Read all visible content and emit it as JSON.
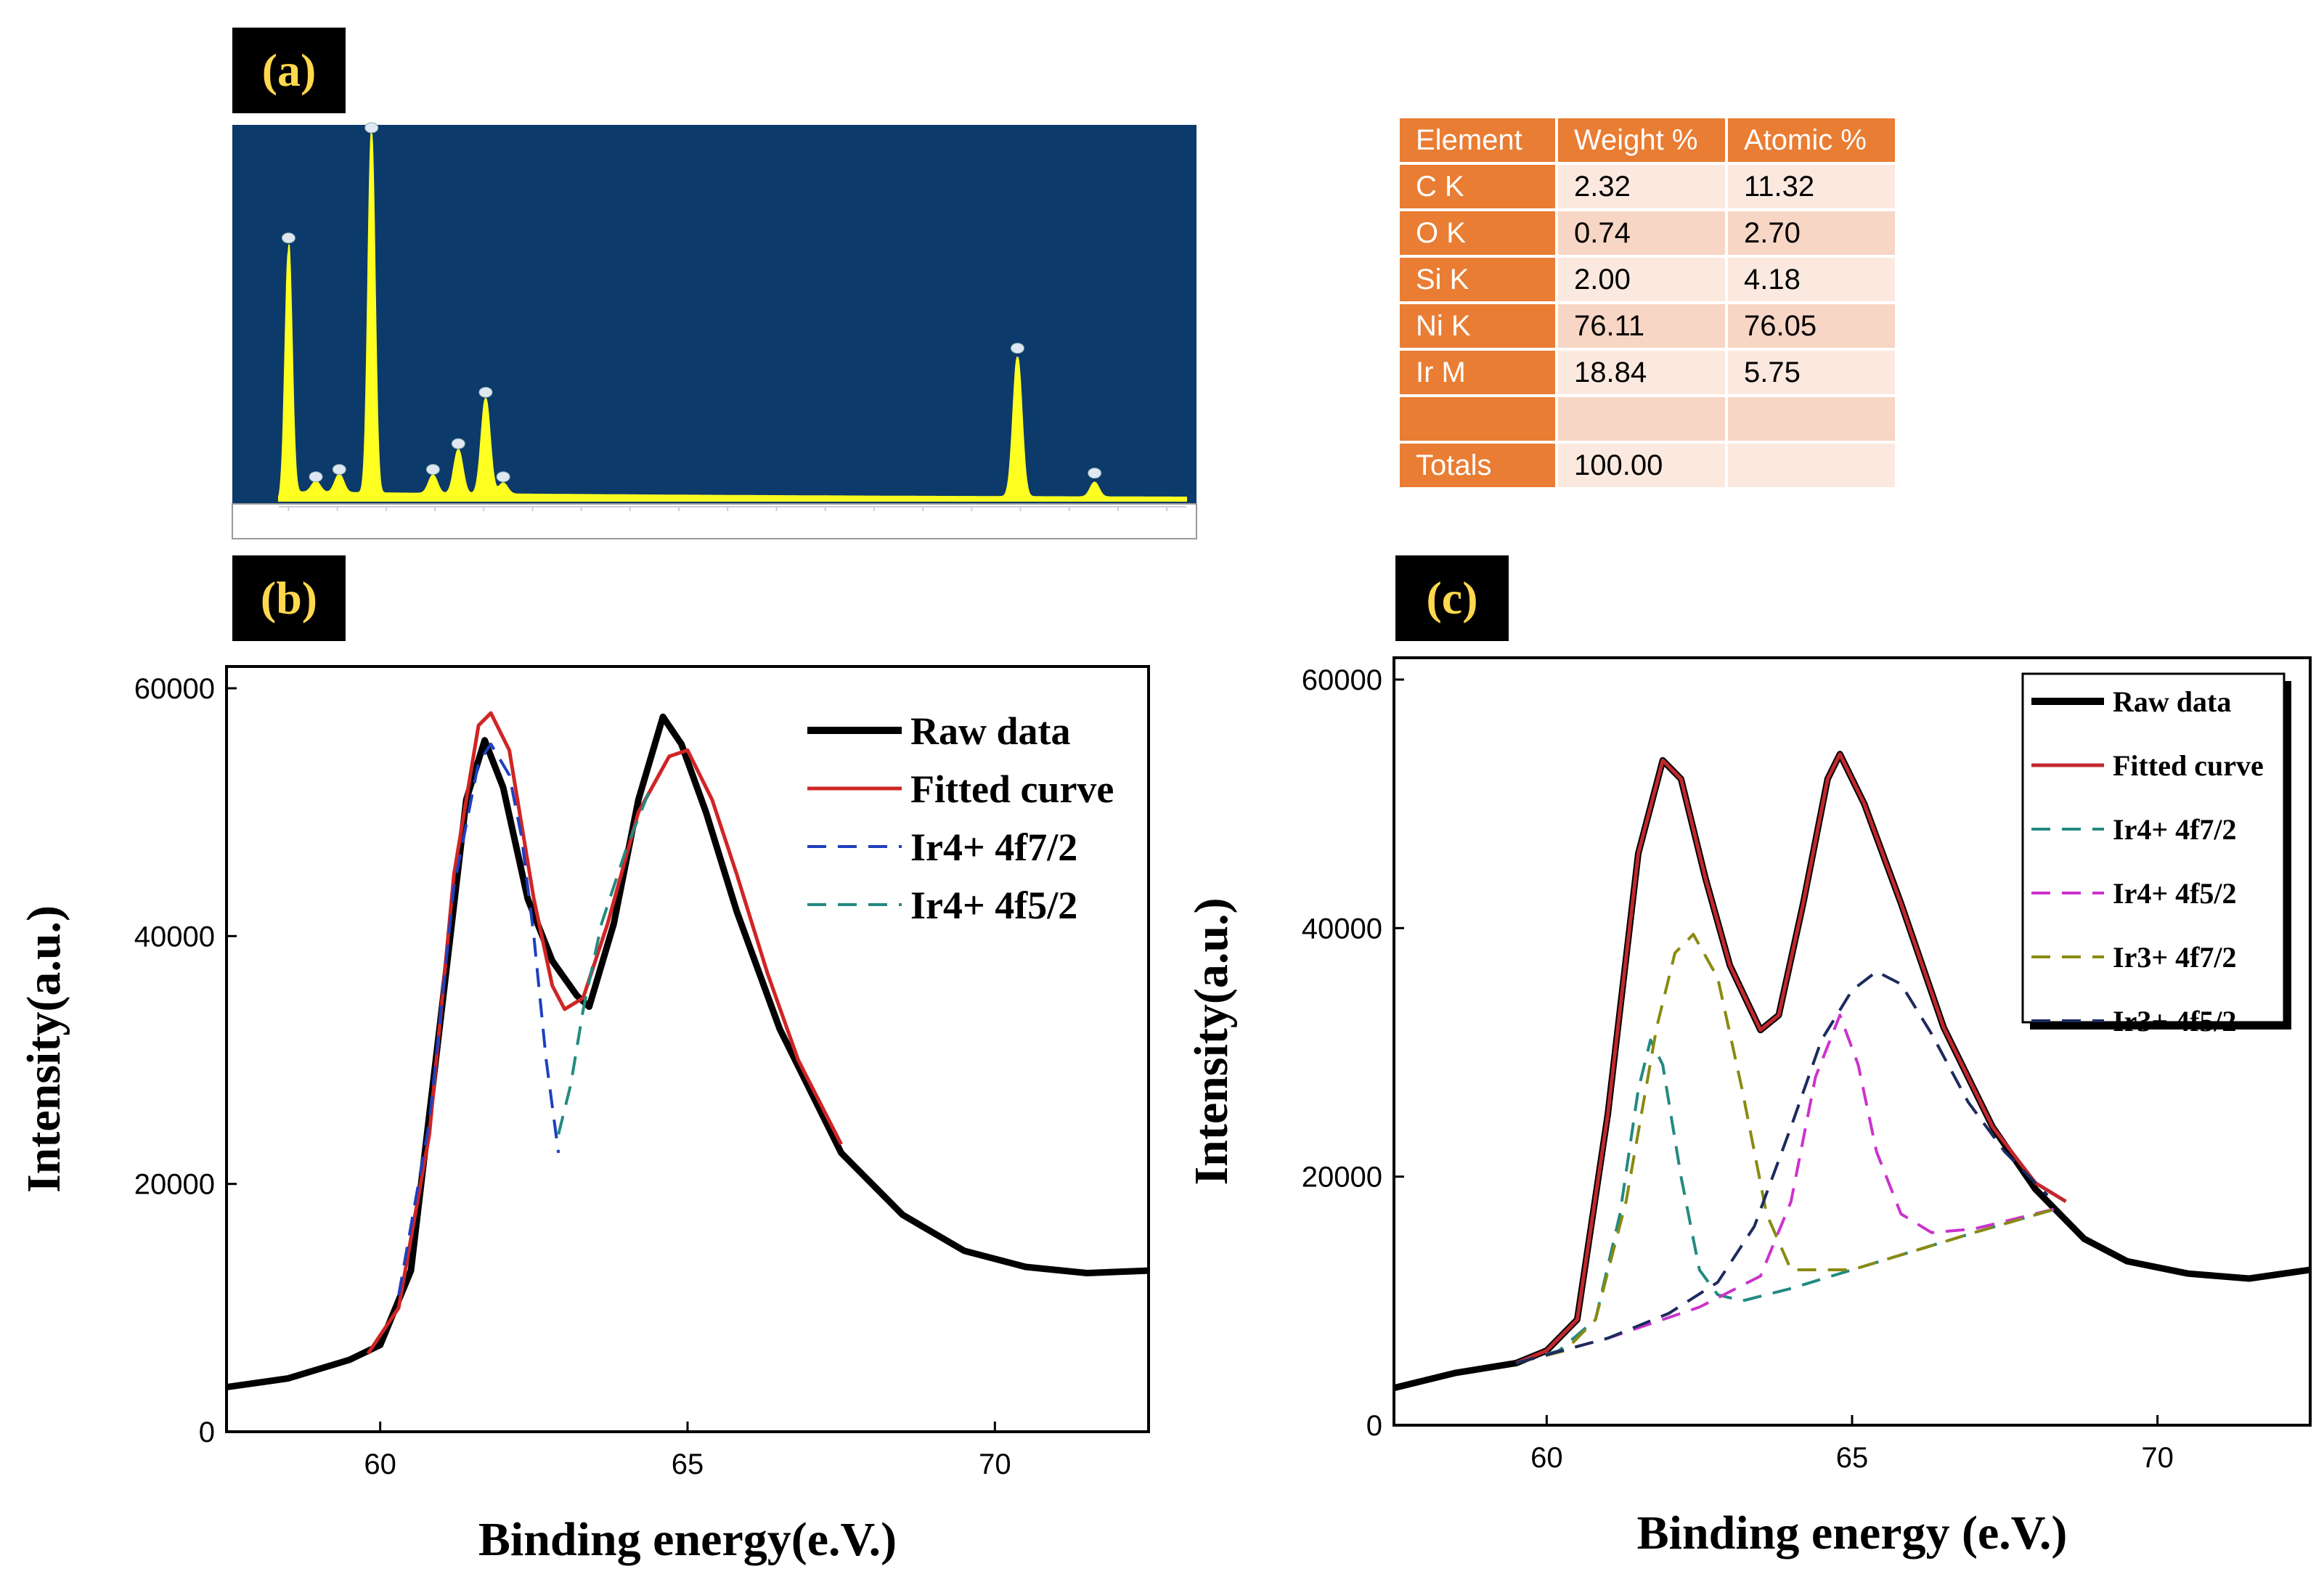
{
  "panels": {
    "a": "(a)",
    "b": "(b)",
    "c": "(c)"
  },
  "eds_table": {
    "headers": [
      "Element",
      "Weight %",
      "Atomic %"
    ],
    "rows": [
      [
        "C K",
        "2.32",
        "11.32"
      ],
      [
        "O K",
        "0.74",
        "2.70"
      ],
      [
        "Si K",
        "2.00",
        "4.18"
      ],
      [
        "Ni K",
        "76.11",
        "76.05"
      ],
      [
        "Ir M",
        "18.84",
        "5.75"
      ],
      [
        "",
        "",
        ""
      ],
      [
        "Totals",
        "100.00",
        ""
      ]
    ]
  },
  "chart_data": [
    {
      "panel": "a",
      "type": "line",
      "title": "",
      "xlabel": "",
      "ylabel": "",
      "background": "#0b3a6b",
      "line_color": "#ffff22",
      "xlim": [
        -0.1,
        9.2
      ],
      "xticks": [
        0,
        0.5,
        1,
        1.5,
        2,
        2.5,
        3,
        3.5,
        4,
        4.5,
        5,
        5.5,
        6,
        6.5,
        7,
        7.5,
        8,
        8.5,
        9
      ],
      "peaks": [
        {
          "x": 0.0,
          "height": 0.68
        },
        {
          "x": 0.28,
          "height": 0.03
        },
        {
          "x": 0.52,
          "height": 0.05
        },
        {
          "x": 0.85,
          "height": 0.98
        },
        {
          "x": 1.48,
          "height": 0.05
        },
        {
          "x": 1.74,
          "height": 0.12
        },
        {
          "x": 2.02,
          "height": 0.26
        },
        {
          "x": 2.2,
          "height": 0.03
        },
        {
          "x": 7.47,
          "height": 0.38
        },
        {
          "x": 8.26,
          "height": 0.04
        }
      ]
    },
    {
      "panel": "b",
      "type": "line",
      "xlabel": "Binding energy(e.V.)",
      "ylabel": "Intensity(a.u.)",
      "xlim": [
        57.5,
        72.5
      ],
      "ylim": [
        0,
        60000
      ],
      "xticks": [
        60,
        65,
        70
      ],
      "yticks": [
        0,
        20000,
        40000,
        60000
      ],
      "legend_position": "top-right",
      "series": [
        {
          "name": "Raw data",
          "color": "#000000",
          "style": "solid-thick",
          "x": [
            57.5,
            58.5,
            59.5,
            60.0,
            60.5,
            61.0,
            61.4,
            61.7,
            62.0,
            62.4,
            62.8,
            63.2,
            63.4,
            63.8,
            64.2,
            64.6,
            64.9,
            65.3,
            65.8,
            66.5,
            67.5,
            68.5,
            69.5,
            70.5,
            71.5,
            72.5
          ],
          "y": [
            3600,
            4300,
            5800,
            7000,
            13000,
            34000,
            51000,
            55800,
            52000,
            43000,
            38000,
            35200,
            34300,
            41000,
            51000,
            57700,
            55500,
            50000,
            42000,
            32500,
            22500,
            17500,
            14600,
            13300,
            12800,
            13000
          ]
        },
        {
          "name": "Fitted curve",
          "color": "#d02525",
          "style": "solid",
          "x": [
            59.8,
            60.3,
            60.8,
            61.2,
            61.6,
            61.8,
            62.1,
            62.5,
            62.8,
            63.0,
            63.3,
            63.7,
            64.2,
            64.7,
            65.0,
            65.4,
            65.8,
            66.3,
            66.8,
            67.5
          ],
          "y": [
            6300,
            10000,
            24000,
            45000,
            57000,
            58000,
            55000,
            43000,
            36000,
            34100,
            35000,
            41000,
            50000,
            54500,
            55000,
            51000,
            45000,
            37000,
            30000,
            23200
          ]
        },
        {
          "name": "Ir4+ 4f7/2",
          "color": "#1f3fbf",
          "style": "dashed",
          "x": [
            60.3,
            60.8,
            61.2,
            61.6,
            61.8,
            62.1,
            62.3,
            62.5,
            62.7,
            62.9
          ],
          "y": [
            11000,
            25000,
            44000,
            54000,
            55500,
            53000,
            48000,
            40000,
            30000,
            22500
          ]
        },
        {
          "name": "Ir4+ 4f5/2",
          "color": "#238a80",
          "style": "dashed",
          "x": [
            62.9,
            63.1,
            63.3,
            63.6,
            64.0,
            64.4
          ],
          "y": [
            24000,
            28000,
            34000,
            41000,
            47000,
            52000
          ]
        }
      ]
    },
    {
      "panel": "c",
      "type": "line",
      "xlabel": "Binding energy (e.V.)",
      "ylabel": "Intensity(a.u.)",
      "xlim": [
        57.5,
        72.5
      ],
      "ylim": [
        0,
        60000
      ],
      "xticks": [
        60,
        65,
        70
      ],
      "yticks": [
        0,
        20000,
        40000,
        60000
      ],
      "legend_position": "top-right",
      "series": [
        {
          "name": "Raw data",
          "color": "#000000",
          "style": "solid-thick",
          "x": [
            57.5,
            58.5,
            59.5,
            60.0,
            60.5,
            61.0,
            61.5,
            61.9,
            62.2,
            62.6,
            63.0,
            63.5,
            63.8,
            64.2,
            64.6,
            64.8,
            65.2,
            65.8,
            66.5,
            67.3,
            68.0,
            68.8,
            69.5,
            70.5,
            71.5,
            72.5
          ],
          "y": [
            3000,
            4200,
            5000,
            6000,
            8500,
            25000,
            46000,
            53500,
            52000,
            44000,
            37000,
            31800,
            33000,
            42000,
            52000,
            54000,
            50000,
            42000,
            32000,
            24000,
            19000,
            15000,
            13200,
            12200,
            11800,
            12500
          ]
        },
        {
          "name": "Fitted curve",
          "color": "#c0282d",
          "style": "solid",
          "x": [
            59.5,
            60.0,
            60.5,
            61.0,
            61.5,
            61.9,
            62.2,
            62.6,
            63.0,
            63.5,
            63.8,
            64.2,
            64.6,
            64.8,
            65.2,
            65.8,
            66.5,
            67.3,
            68.0,
            68.5
          ],
          "y": [
            5000,
            6000,
            8500,
            25000,
            46000,
            53500,
            52000,
            44000,
            37000,
            31800,
            33000,
            42000,
            52000,
            54000,
            50000,
            42000,
            32000,
            24000,
            19500,
            18000
          ]
        },
        {
          "name": "Ir4+ 4f7/2",
          "color": "#238a80",
          "style": "dashed",
          "x": [
            59.5,
            60.2,
            60.8,
            61.2,
            61.5,
            61.7,
            61.9,
            62.2,
            62.5,
            62.8,
            63.2,
            64.0,
            65.0,
            66.0,
            67.0,
            68.4
          ],
          "y": [
            5000,
            6000,
            8500,
            17000,
            27000,
            31000,
            29000,
            20000,
            12500,
            10500,
            10000,
            11000,
            12500,
            14000,
            15500,
            17500
          ]
        },
        {
          "name": "Ir4+ 4f5/2",
          "color": "#cc33cc",
          "style": "dashed",
          "x": [
            59.5,
            61.0,
            62.5,
            63.5,
            64.0,
            64.4,
            64.8,
            65.1,
            65.4,
            65.8,
            66.3,
            67.0,
            68.4
          ],
          "y": [
            5000,
            7000,
            9500,
            12000,
            18000,
            28000,
            33000,
            29000,
            22000,
            17000,
            15500,
            15800,
            17500
          ]
        },
        {
          "name": "Ir3+ 4f7/2",
          "color": "#8a8a12",
          "style": "dashed",
          "x": [
            59.5,
            60.3,
            60.8,
            61.3,
            61.8,
            62.1,
            62.4,
            62.8,
            63.2,
            63.6,
            64.0,
            65.0,
            66.0,
            67.0,
            68.4
          ],
          "y": [
            5000,
            6000,
            8500,
            18000,
            32000,
            38000,
            39500,
            36000,
            27000,
            17000,
            12500,
            12500,
            14000,
            15500,
            17500
          ]
        },
        {
          "name": "Ir3+ 4f5/2",
          "color": "#1c2b5e",
          "style": "dashed",
          "x": [
            59.5,
            61.0,
            62.0,
            62.8,
            63.4,
            64.0,
            64.5,
            65.0,
            65.4,
            65.8,
            66.3,
            66.9,
            67.5,
            68.2
          ],
          "y": [
            5000,
            7000,
            9000,
            11500,
            16000,
            24000,
            31000,
            35000,
            36500,
            35500,
            31500,
            26000,
            22000,
            18500
          ]
        }
      ]
    }
  ]
}
